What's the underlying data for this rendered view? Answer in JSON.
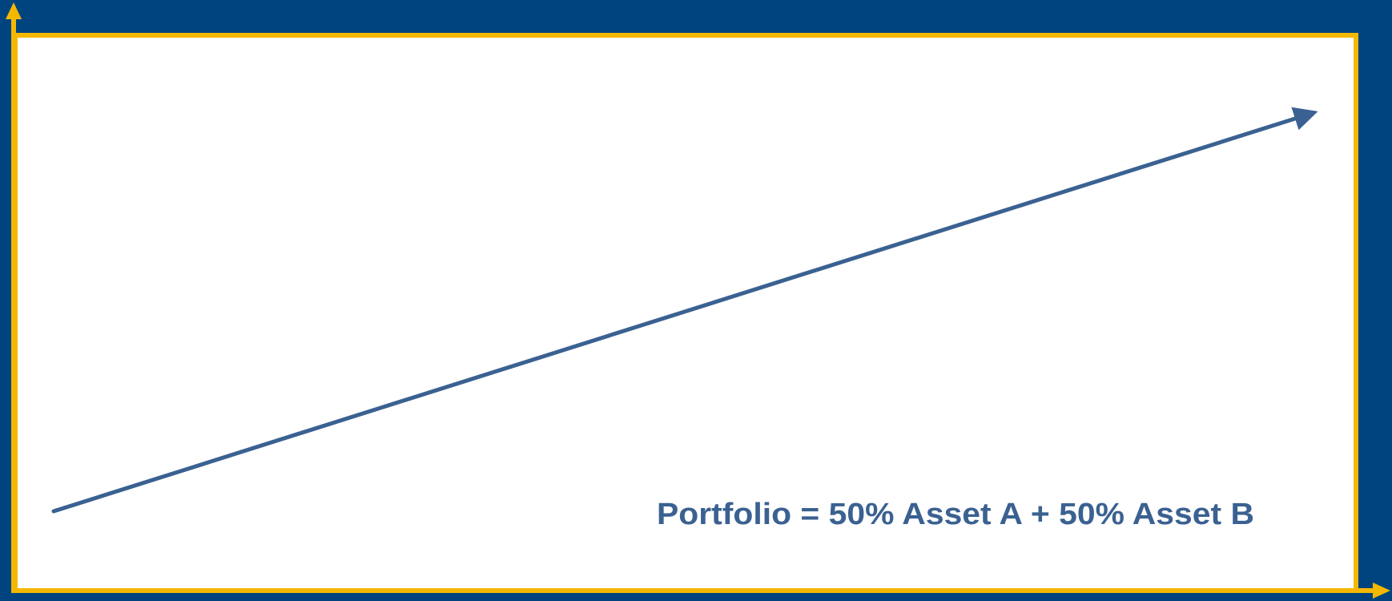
{
  "label": "Portfolio = 50% Asset A + 50% Asset B"
}
